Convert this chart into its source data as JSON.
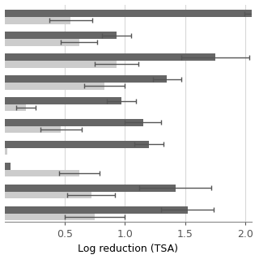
{
  "xlabel": "Log reduction (TSA)",
  "xlim": [
    0,
    2.05
  ],
  "xticks": [
    0.5,
    1.0,
    1.5,
    2.0
  ],
  "xtick_labels": [
    "0.5",
    "1.0",
    "1.5",
    "2.0"
  ],
  "background_color": "#ffffff",
  "bar_height": 0.32,
  "groups": [
    {
      "dark_val": 2.05,
      "dark_err": 0.06,
      "light_val": 0.55,
      "light_err": 0.18
    },
    {
      "dark_val": 0.93,
      "dark_err": 0.12,
      "light_val": 0.62,
      "light_err": 0.15
    },
    {
      "dark_val": 1.75,
      "dark_err": 0.28,
      "light_val": 0.93,
      "light_err": 0.18
    },
    {
      "dark_val": 1.35,
      "dark_err": 0.12,
      "light_val": 0.83,
      "light_err": 0.17
    },
    {
      "dark_val": 0.97,
      "dark_err": 0.12,
      "light_val": 0.18,
      "light_err": 0.08
    },
    {
      "dark_val": 1.15,
      "dark_err": 0.15,
      "light_val": 0.47,
      "light_err": 0.17
    },
    {
      "dark_val": 1.2,
      "dark_err": 0.12,
      "light_val": 0.02,
      "light_err": 0.0
    },
    {
      "dark_val": 0.05,
      "dark_err": 0.0,
      "light_val": 0.62,
      "light_err": 0.17
    },
    {
      "dark_val": 1.42,
      "dark_err": 0.3,
      "light_val": 0.72,
      "light_err": 0.2
    },
    {
      "dark_val": 1.52,
      "dark_err": 0.22,
      "light_val": 0.75,
      "light_err": 0.25
    }
  ],
  "dark_color": "#666666",
  "light_color": "#cccccc",
  "grid_color": "#d8d8d8",
  "error_color": "#555555",
  "xlabel_fontsize": 9,
  "xtick_fontsize": 9
}
